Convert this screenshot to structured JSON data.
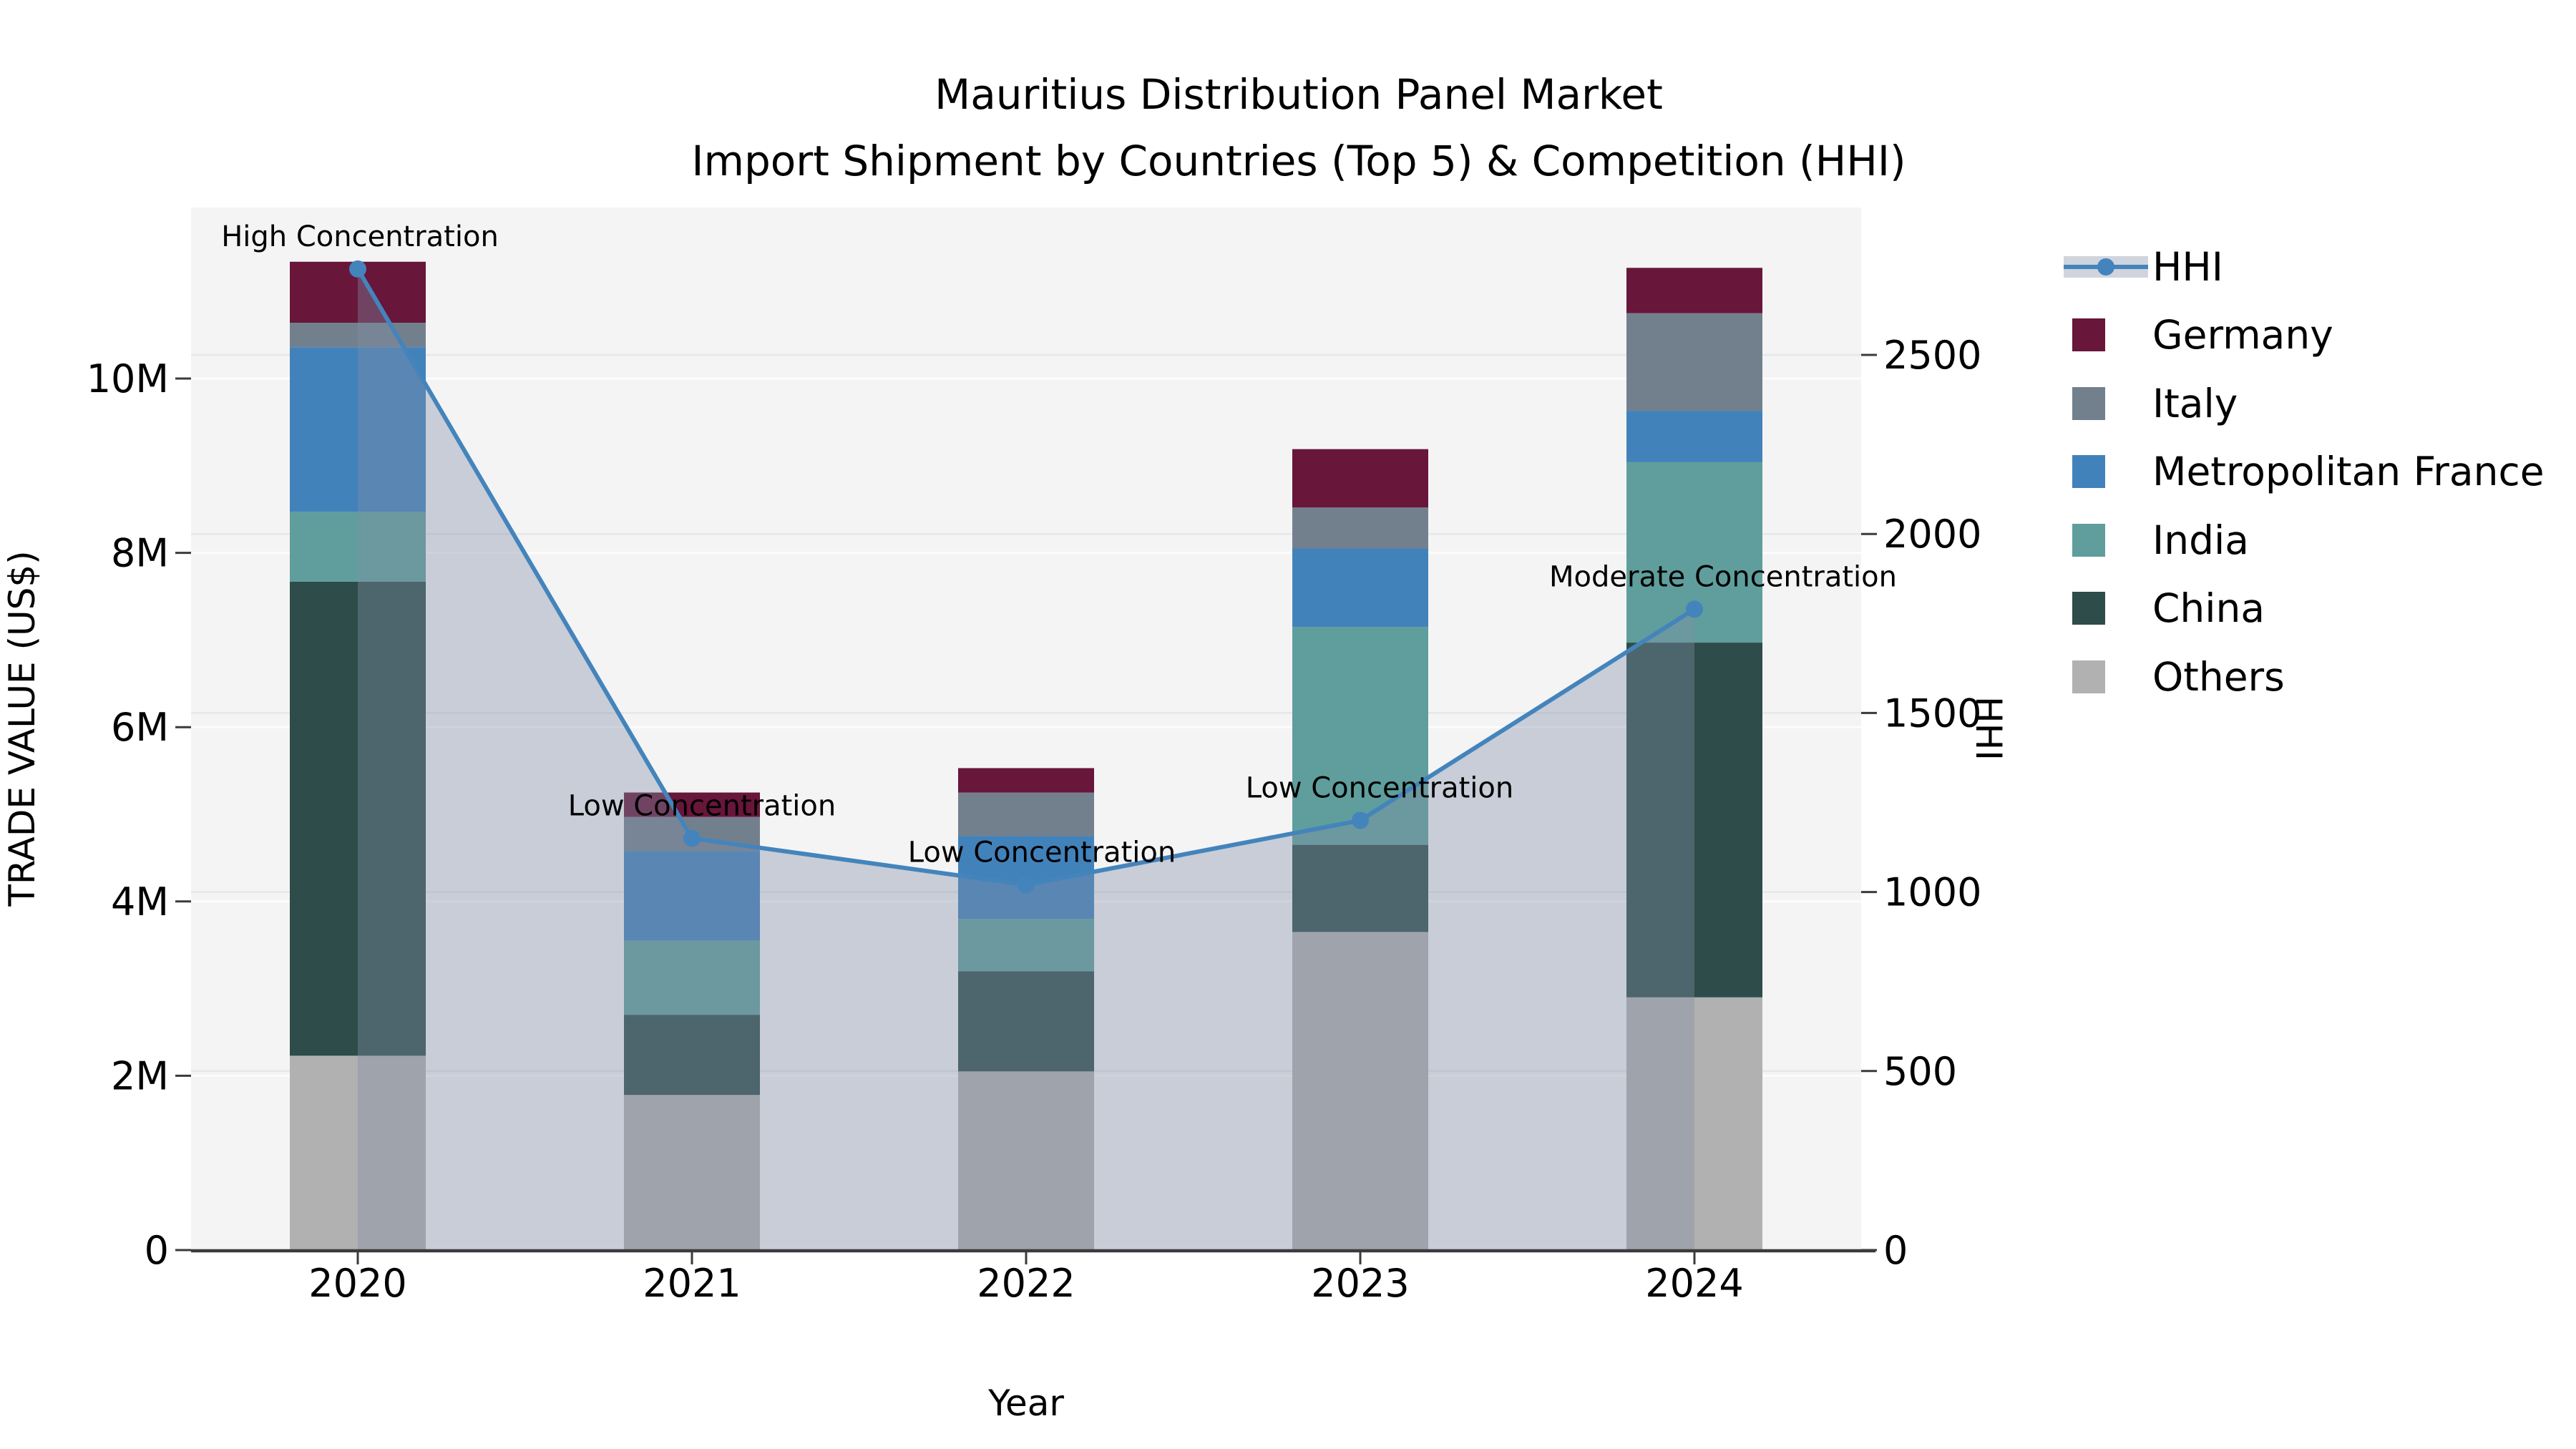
{
  "title": {
    "line1": "Mauritius Distribution Panel Market",
    "line2": "Import Shipment by Countries (Top 5) & Competition (HHI)"
  },
  "axes": {
    "x_title": "Year",
    "y_left_title": "TRADE VALUE (US$)",
    "y_right_title": "HHI",
    "y_left_ticks": [
      {
        "value": 0,
        "label": "0"
      },
      {
        "value": 2000000,
        "label": "2M"
      },
      {
        "value": 4000000,
        "label": "4M"
      },
      {
        "value": 6000000,
        "label": "6M"
      },
      {
        "value": 8000000,
        "label": "8M"
      },
      {
        "value": 10000000,
        "label": "10M"
      }
    ],
    "y_right_ticks": [
      {
        "value": 0,
        "label": "0"
      },
      {
        "value": 500,
        "label": "500"
      },
      {
        "value": 1000,
        "label": "1000"
      },
      {
        "value": 1500,
        "label": "1500"
      },
      {
        "value": 2000,
        "label": "2000"
      },
      {
        "value": 2500,
        "label": "2500"
      }
    ]
  },
  "chart_data": {
    "type": "combo-stacked-bar-line",
    "categories": [
      "2020",
      "2021",
      "2022",
      "2023",
      "2024"
    ],
    "xlabel": "Year",
    "ylabel_left": "TRADE VALUE (US$)",
    "ylabel_right": "HHI",
    "ylim_left": [
      0,
      11960000
    ],
    "ylim_right": [
      0,
      2905
    ],
    "grid": true,
    "bar_stack_order_bottom_to_top": [
      "Others",
      "China",
      "India",
      "Metropolitan France",
      "Italy",
      "Germany"
    ],
    "series": [
      {
        "name": "Others",
        "type": "bar",
        "color": "#b1b1b1",
        "values": [
          2230000,
          1780000,
          2050000,
          3650000,
          2900000
        ]
      },
      {
        "name": "China",
        "type": "bar",
        "color": "#2e4c49",
        "values": [
          5440000,
          920000,
          1150000,
          1000000,
          4070000
        ]
      },
      {
        "name": "India",
        "type": "bar",
        "color": "#5f9e9c",
        "values": [
          800000,
          850000,
          600000,
          2500000,
          2070000
        ]
      },
      {
        "name": "Metropolitan France",
        "type": "bar",
        "color": "#4282bb",
        "values": [
          1890000,
          1030000,
          950000,
          900000,
          590000
        ]
      },
      {
        "name": "Italy",
        "type": "bar",
        "color": "#72808e",
        "values": [
          280000,
          390000,
          500000,
          470000,
          1120000
        ]
      },
      {
        "name": "Germany",
        "type": "bar",
        "color": "#68163a",
        "values": [
          700000,
          280000,
          280000,
          670000,
          520000
        ]
      },
      {
        "name": "HHI",
        "type": "line",
        "axis": "right",
        "color": "#4484bc",
        "area_fill": "rgba(130,143,165,0.38)",
        "values": [
          2740,
          1150,
          1020,
          1200,
          1790
        ]
      }
    ],
    "annotations": [
      {
        "category": "2020",
        "text": "High Concentration",
        "dx": 3
      },
      {
        "category": "2021",
        "text": "Low Concentration",
        "dx": 14
      },
      {
        "category": "2022",
        "text": "Low Concentration",
        "dx": 22
      },
      {
        "category": "2023",
        "text": "Low Concentration",
        "dx": 27
      },
      {
        "category": "2024",
        "text": "Moderate Concentration",
        "dx": 40
      }
    ],
    "legend_position": "outside-top-right"
  },
  "legend": {
    "items": [
      {
        "label": "HHI",
        "swatch": "line-marker",
        "color": "#4484bc"
      },
      {
        "label": "Germany",
        "swatch": "square",
        "color": "#68163a"
      },
      {
        "label": "Italy",
        "swatch": "square",
        "color": "#72808e"
      },
      {
        "label": "Metropolitan France",
        "swatch": "square",
        "color": "#4282bb"
      },
      {
        "label": "India",
        "swatch": "square",
        "color": "#5f9e9c"
      },
      {
        "label": "China",
        "swatch": "square",
        "color": "#2e4c49"
      },
      {
        "label": "Others",
        "swatch": "square",
        "color": "#b1b1b1"
      }
    ]
  },
  "colors": {
    "plot_background": "#f4f4f5",
    "figure_background": "#ffffff",
    "gridline_money": "#fdfdfd",
    "gridline_hhi": "#e6e7e9",
    "axis_line": "#3b3b3b",
    "hhi_line": "#4484bc",
    "hhi_area": "rgba(130,143,165,0.38)",
    "text": "#000000"
  }
}
